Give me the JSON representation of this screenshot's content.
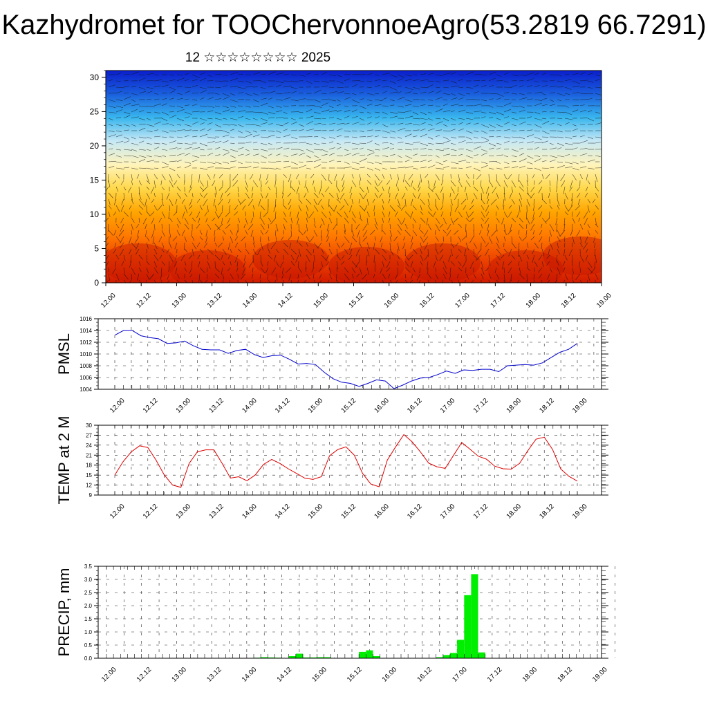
{
  "title": "Kazhydromet for TOOChervonnoeAgro(53.2819 66.7291)",
  "subtitle": "12 ☆☆☆☆☆☆☆☆ 2025",
  "time_ticks": [
    "12.00",
    "12.12",
    "13.00",
    "13.12",
    "14.00",
    "14.12",
    "15.00",
    "15.12",
    "16.00",
    "16.12",
    "17.00",
    "17.12",
    "18.00",
    "18.12",
    "19.00"
  ],
  "colors": {
    "pmsl": "#0000cc",
    "temp": "#dd0000",
    "precip": "#00ee00"
  },
  "chart_data": [
    {
      "type": "heatmap",
      "name": "vertical-section",
      "title": "",
      "ylim": [
        0,
        31
      ],
      "yticks": [
        0,
        5,
        10,
        15,
        20,
        25,
        30
      ],
      "note_colors": "red (warm, low levels) to blue (cold, upper levels) with wind vectors overlaid",
      "ramp": [
        "#d11a00",
        "#ee4400",
        "#ff7a00",
        "#ffa500",
        "#ffd84a",
        "#fff4bb",
        "#c7e8f5",
        "#38b6ee",
        "#1a5fdd",
        "#0a1ecc"
      ]
    },
    {
      "type": "line",
      "name": "pmsl",
      "ylabel": "PMSL",
      "ylim": [
        1004,
        1016
      ],
      "yticks": [
        1004,
        1006,
        1008,
        1010,
        1012,
        1014,
        1016
      ],
      "values": [
        1013.2,
        1014.0,
        1014.0,
        1013.1,
        1012.8,
        1012.6,
        1011.8,
        1011.9,
        1012.2,
        1011.4,
        1010.8,
        1010.7,
        1010.7,
        1010.1,
        1010.6,
        1010.8,
        1009.9,
        1009.4,
        1009.7,
        1009.8,
        1009.1,
        1008.3,
        1008.4,
        1008.2,
        1006.9,
        1005.8,
        1005.2,
        1005.0,
        1004.5,
        1005.0,
        1005.6,
        1005.4,
        1004.1,
        1004.7,
        1005.4,
        1005.9,
        1006.0,
        1006.5,
        1007.1,
        1006.7,
        1007.3,
        1007.2,
        1007.4,
        1007.4,
        1007.0,
        1008.0,
        1008.1,
        1008.2,
        1008.1,
        1008.5,
        1009.4,
        1010.3,
        1010.8,
        1011.8
      ],
      "grid": true
    },
    {
      "type": "line",
      "name": "temp2m",
      "ylabel": "TEMP at 2 M",
      "ylim": [
        9,
        30
      ],
      "yticks": [
        9,
        12,
        15,
        18,
        21,
        24,
        27,
        30
      ],
      "values": [
        15,
        19,
        22,
        23.8,
        23.3,
        19.5,
        15,
        12,
        11.3,
        18.5,
        22,
        22.6,
        22.6,
        18.5,
        14.1,
        14.5,
        13.3,
        15,
        18.2,
        19.7,
        18.5,
        16.9,
        15.5,
        14.1,
        13.7,
        14.5,
        20.8,
        22.7,
        23.5,
        21,
        15.5,
        12.3,
        11.5,
        19.5,
        23.5,
        27.2,
        25,
        22,
        18.6,
        17.5,
        17,
        20.9,
        24.8,
        22.8,
        20.7,
        19.8,
        17.7,
        16.9,
        16.8,
        18.5,
        22.3,
        25.8,
        26.4,
        22.7,
        16.8,
        14.6,
        13.2
      ],
      "grid": true
    },
    {
      "type": "bar",
      "name": "precip",
      "ylabel": "PRECIP, mm",
      "ylim": [
        0,
        3.5
      ],
      "yticks": [
        "0.0",
        "0.5",
        "1.0",
        "1.5",
        "2.0",
        "2.5",
        "3.0",
        "3.5"
      ],
      "values": [
        0,
        0,
        0,
        0,
        0,
        0,
        0,
        0,
        0,
        0,
        0,
        0,
        0,
        0,
        0,
        0,
        0,
        0,
        0.01,
        0.01,
        0,
        0.02,
        0.04,
        0.03,
        0.02,
        0,
        0.08,
        0.17,
        0.03,
        0.03,
        0.04,
        0.04,
        0,
        0,
        0,
        0,
        0.24,
        0.3,
        0.08,
        0,
        0,
        0,
        0,
        0,
        0,
        0,
        0,
        0.04,
        0.12,
        0.2,
        0.7,
        2.4,
        3.2,
        0.22,
        0,
        0,
        0,
        0,
        0,
        0,
        0,
        0,
        0,
        0,
        0,
        0,
        0,
        0,
        0,
        0
      ],
      "grid": true
    }
  ]
}
